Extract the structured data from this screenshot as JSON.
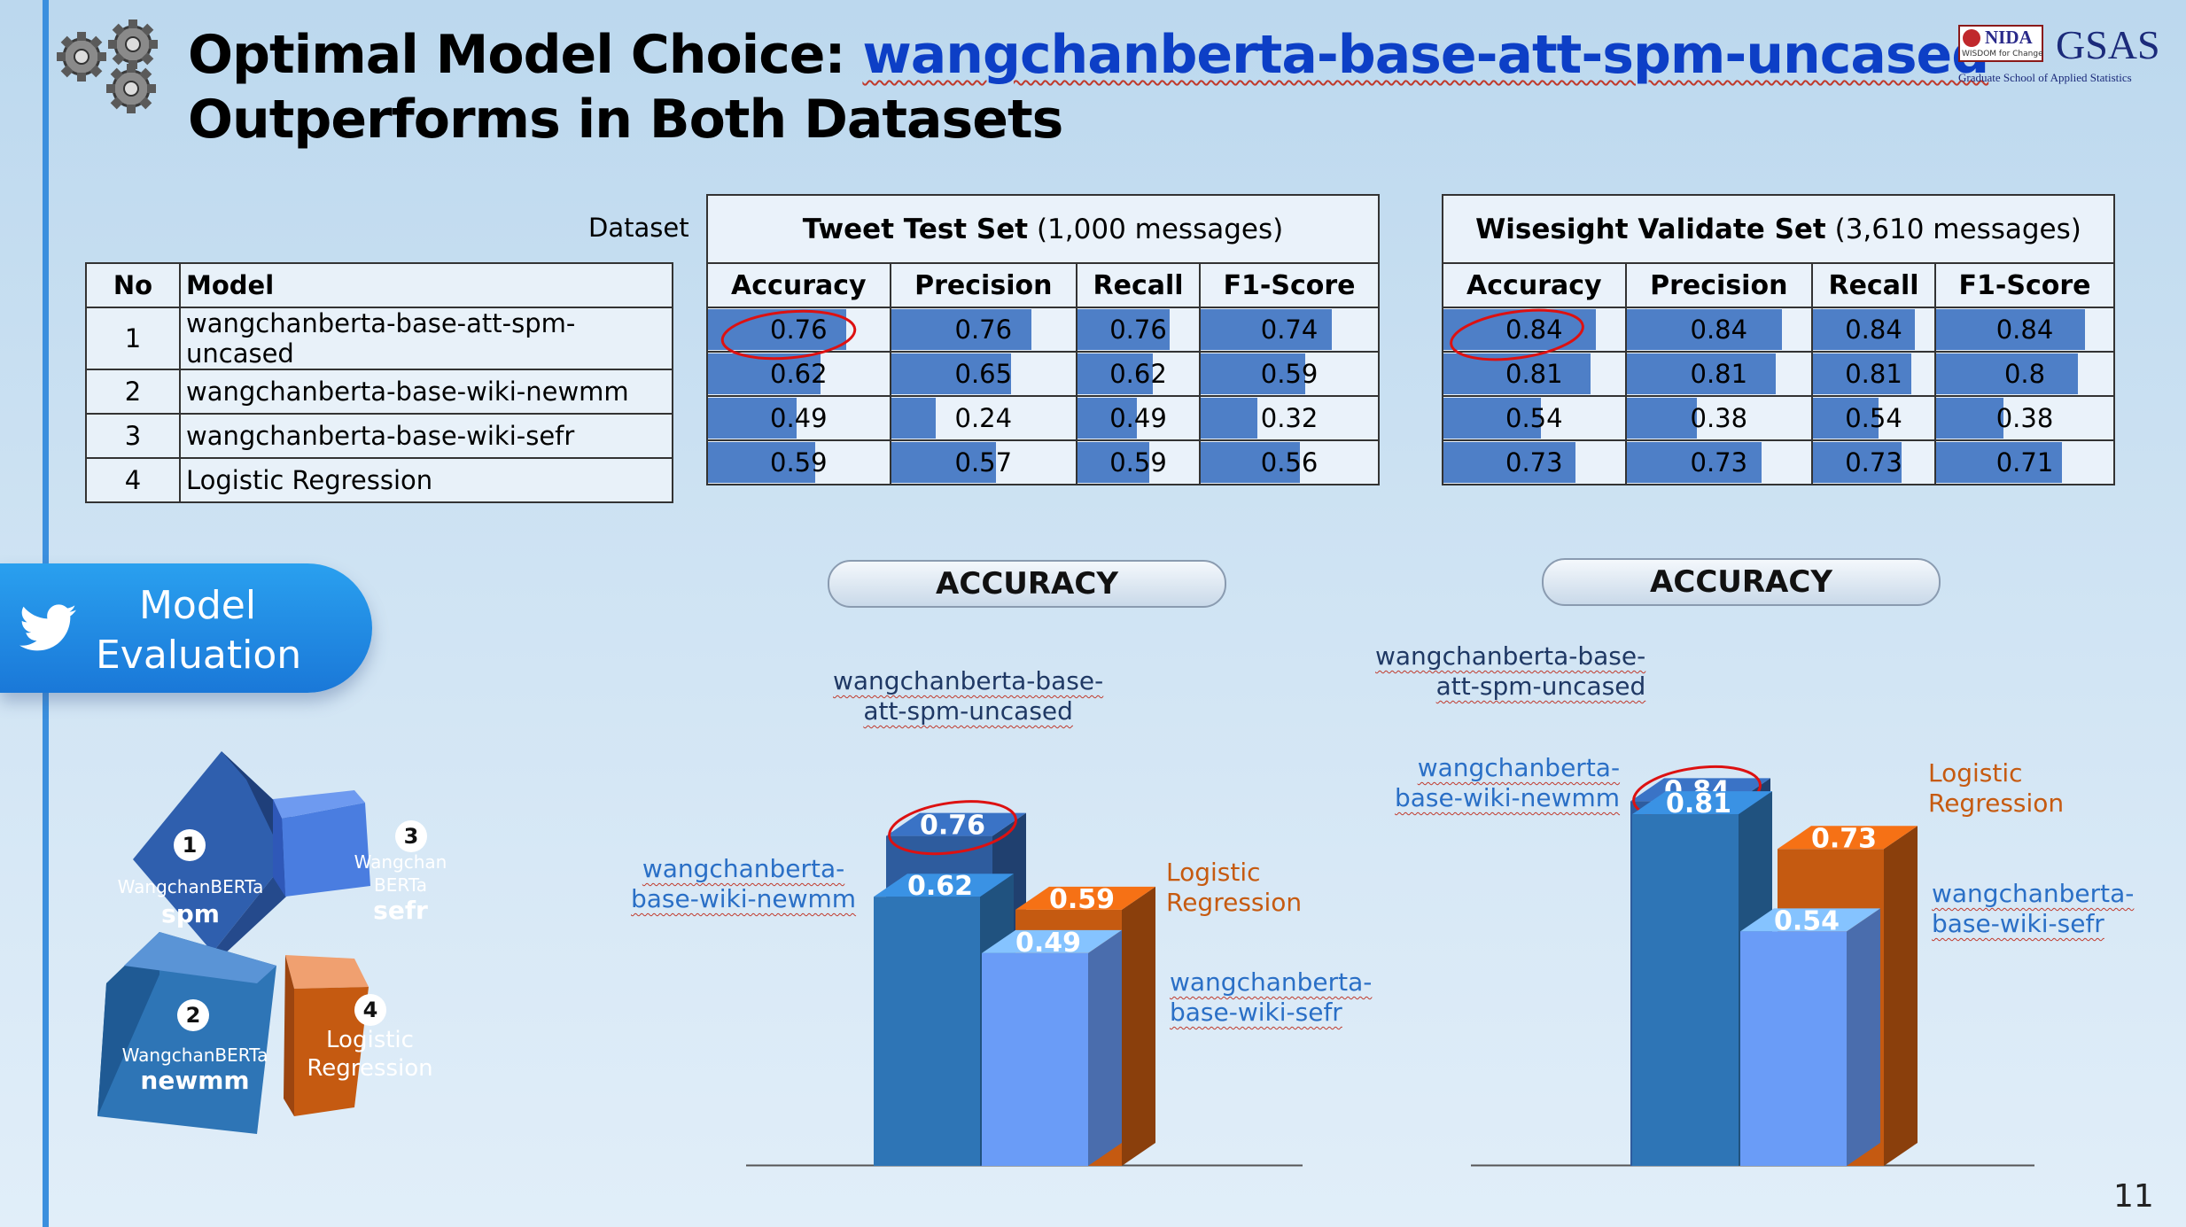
{
  "title": {
    "prefix": "Optimal Model Choice: ",
    "highlight": "wangchanberta-base-att-spm-uncased",
    "line2": "Outperforms in Both Datasets"
  },
  "logo": {
    "nida": "NIDA",
    "nida_tagline": "WISDOM for Change",
    "gsas": "GSAS",
    "gsas_full": "Graduate School of Applied Statistics"
  },
  "dataset_label": "Dataset",
  "model_table": {
    "headers": [
      "No",
      "Model"
    ],
    "rows": [
      {
        "no": "1",
        "model": "wangchanberta-base-att-spm-uncased"
      },
      {
        "no": "2",
        "model": "wangchanberta-base-wiki-newmm"
      },
      {
        "no": "3",
        "model": "wangchanberta-base-wiki-sefr"
      },
      {
        "no": "4",
        "model": "Logistic Regression"
      }
    ]
  },
  "metric_headers": [
    "Accuracy",
    "Precision",
    "Recall",
    "F1-Score"
  ],
  "tweet": {
    "name": "Tweet Test Set",
    "count": "(1,000 messages)",
    "rows": [
      [
        "0.76",
        "0.76",
        "0.76",
        "0.74"
      ],
      [
        "0.62",
        "0.65",
        "0.62",
        "0.59"
      ],
      [
        "0.49",
        "0.24",
        "0.49",
        "0.32"
      ],
      [
        "0.59",
        "0.57",
        "0.59",
        "0.56"
      ]
    ]
  },
  "wise": {
    "name": "Wisesight Validate Set",
    "count": "(3,610 messages)",
    "rows": [
      [
        "0.84",
        "0.84",
        "0.84",
        "0.84"
      ],
      [
        "0.81",
        "0.81",
        "0.81",
        "0.8"
      ],
      [
        "0.54",
        "0.38",
        "0.54",
        "0.38"
      ],
      [
        "0.73",
        "0.73",
        "0.73",
        "0.71"
      ]
    ]
  },
  "eval_badge": {
    "line1": "Model",
    "line2": "Evaluation"
  },
  "cubes": [
    {
      "num": "1",
      "name": "WangchanBERTa",
      "variant": "spm"
    },
    {
      "num": "2",
      "name": "WangchanBERTa",
      "variant": "newmm"
    },
    {
      "num": "3",
      "name": "Wangchan BERTa",
      "variant": "sefr"
    },
    {
      "num": "4",
      "name": "Logistic Regression",
      "variant": ""
    }
  ],
  "colors": {
    "spm": "#2e5c9e",
    "newmm": "#2e75b6",
    "sefr": "#6a9cf7",
    "lr": "#c55a11",
    "accent": "#0d3fc6"
  },
  "chart_data": [
    {
      "type": "bar",
      "title": "ACCURACY",
      "categories": [
        "wangchanberta-base-att-spm-uncased",
        "wangchanberta-base-wiki-newmm",
        "Logistic Regression",
        "wangchanberta-base-wiki-sefr"
      ],
      "values": [
        0.76,
        0.62,
        0.59,
        0.49
      ],
      "value_labels": [
        "0.76",
        "0.62",
        "0.59",
        "0.49"
      ],
      "category_labels": {
        "spm": [
          "wangchanberta-base-",
          "att-spm-uncased"
        ],
        "newmm": [
          "wangchanberta-",
          "base-wiki-newmm"
        ],
        "lr": [
          "Logistic",
          "Regression"
        ],
        "sefr": [
          "wangchanberta-",
          "base-wiki-sefr"
        ]
      }
    },
    {
      "type": "bar",
      "title": "ACCURACY",
      "categories": [
        "wangchanberta-base-att-spm-uncased",
        "wangchanberta-base-wiki-newmm",
        "Logistic Regression",
        "wangchanberta-base-wiki-sefr"
      ],
      "values": [
        0.84,
        0.81,
        0.73,
        0.54
      ],
      "value_labels": [
        "0.84",
        "0.81",
        "0.73",
        "0.54"
      ],
      "category_labels": {
        "spm": [
          "wangchanberta-base-",
          "att-spm-uncased"
        ],
        "newmm": [
          "wangchanberta-",
          "base-wiki-newmm"
        ],
        "lr": [
          "Logistic",
          "Regression"
        ],
        "sefr": [
          "wangchanberta-",
          "base-wiki-sefr"
        ]
      }
    }
  ],
  "page_number": "11"
}
